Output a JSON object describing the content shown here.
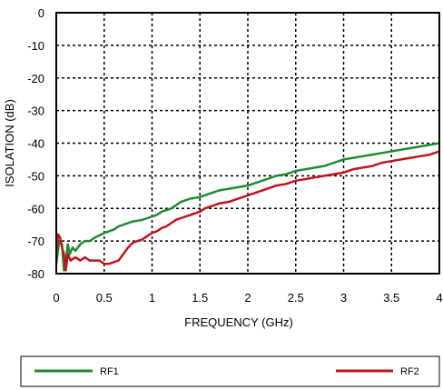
{
  "chart_data": {
    "type": "line",
    "xlabel": "FREQUENCY (GHz)",
    "ylabel": "ISOLATION (dB)",
    "xlim": [
      0,
      4
    ],
    "ylim": [
      -80,
      0
    ],
    "x_ticks": [
      0,
      0.5,
      1,
      1.5,
      2,
      2.5,
      3,
      3.5,
      4
    ],
    "x_tick_labels": [
      "0",
      "0.5",
      "1",
      "1.5",
      "2",
      "2.5",
      "3",
      "3.5",
      "4"
    ],
    "y_ticks": [
      0,
      -10,
      -20,
      -30,
      -40,
      -50,
      -60,
      -70,
      -80
    ],
    "y_tick_labels": [
      "0",
      "-10",
      "-20",
      "-30",
      "-40",
      "-50",
      "-60",
      "-70",
      "-80"
    ],
    "grid": true,
    "legend_position": "bottom",
    "series": [
      {
        "name": "RF1",
        "color": "#1e8a2e",
        "points": [
          [
            0,
            -77
          ],
          [
            0.03,
            -70
          ],
          [
            0.06,
            -71
          ],
          [
            0.08,
            -79
          ],
          [
            0.1,
            -76
          ],
          [
            0.12,
            -71
          ],
          [
            0.14,
            -74
          ],
          [
            0.17,
            -72
          ],
          [
            0.2,
            -73
          ],
          [
            0.25,
            -71
          ],
          [
            0.3,
            -70
          ],
          [
            0.35,
            -70
          ],
          [
            0.4,
            -69
          ],
          [
            0.5,
            -67.5
          ],
          [
            0.55,
            -67
          ],
          [
            0.6,
            -66.5
          ],
          [
            0.65,
            -65.5
          ],
          [
            0.7,
            -65
          ],
          [
            0.8,
            -64
          ],
          [
            0.9,
            -63.5
          ],
          [
            0.95,
            -63
          ],
          [
            1.0,
            -62.5
          ],
          [
            1.05,
            -62
          ],
          [
            1.1,
            -61
          ],
          [
            1.2,
            -60
          ],
          [
            1.25,
            -59
          ],
          [
            1.3,
            -58
          ],
          [
            1.4,
            -57
          ],
          [
            1.5,
            -56.5
          ],
          [
            1.6,
            -55.5
          ],
          [
            1.7,
            -54.5
          ],
          [
            1.8,
            -54
          ],
          [
            1.9,
            -53.5
          ],
          [
            2.0,
            -53
          ],
          [
            2.1,
            -52
          ],
          [
            2.2,
            -51
          ],
          [
            2.3,
            -50
          ],
          [
            2.4,
            -49.5
          ],
          [
            2.5,
            -48.5
          ],
          [
            2.6,
            -48
          ],
          [
            2.7,
            -47.5
          ],
          [
            2.8,
            -47
          ],
          [
            2.9,
            -46
          ],
          [
            3.0,
            -45
          ],
          [
            3.1,
            -44.5
          ],
          [
            3.2,
            -44
          ],
          [
            3.3,
            -43.5
          ],
          [
            3.4,
            -43
          ],
          [
            3.5,
            -42.5
          ],
          [
            3.6,
            -42
          ],
          [
            3.7,
            -41.5
          ],
          [
            3.8,
            -41
          ],
          [
            3.9,
            -40.5
          ],
          [
            4.0,
            -40
          ]
        ]
      },
      {
        "name": "RF2",
        "color": "#c0141c",
        "points": [
          [
            0,
            -73
          ],
          [
            0.02,
            -68
          ],
          [
            0.04,
            -69
          ],
          [
            0.06,
            -72
          ],
          [
            0.08,
            -74
          ],
          [
            0.1,
            -79
          ],
          [
            0.12,
            -74
          ],
          [
            0.15,
            -76
          ],
          [
            0.2,
            -75
          ],
          [
            0.25,
            -76
          ],
          [
            0.3,
            -75
          ],
          [
            0.35,
            -76
          ],
          [
            0.4,
            -76
          ],
          [
            0.45,
            -76
          ],
          [
            0.5,
            -77
          ],
          [
            0.55,
            -77
          ],
          [
            0.6,
            -76.5
          ],
          [
            0.65,
            -76
          ],
          [
            0.7,
            -74
          ],
          [
            0.75,
            -72
          ],
          [
            0.8,
            -70.5
          ],
          [
            0.85,
            -70
          ],
          [
            0.9,
            -69.5
          ],
          [
            0.95,
            -68.5
          ],
          [
            1.0,
            -67.5
          ],
          [
            1.05,
            -67
          ],
          [
            1.1,
            -66
          ],
          [
            1.15,
            -65.5
          ],
          [
            1.2,
            -64.5
          ],
          [
            1.25,
            -63.5
          ],
          [
            1.3,
            -63
          ],
          [
            1.4,
            -62
          ],
          [
            1.5,
            -61
          ],
          [
            1.55,
            -60
          ],
          [
            1.6,
            -59.5
          ],
          [
            1.7,
            -58.5
          ],
          [
            1.8,
            -58
          ],
          [
            1.9,
            -57
          ],
          [
            2.0,
            -56
          ],
          [
            2.1,
            -55
          ],
          [
            2.2,
            -54
          ],
          [
            2.3,
            -53
          ],
          [
            2.4,
            -52.5
          ],
          [
            2.5,
            -51.5
          ],
          [
            2.6,
            -51
          ],
          [
            2.7,
            -50.5
          ],
          [
            2.8,
            -50
          ],
          [
            2.9,
            -49.5
          ],
          [
            3.0,
            -49
          ],
          [
            3.1,
            -48
          ],
          [
            3.2,
            -47.5
          ],
          [
            3.3,
            -47
          ],
          [
            3.4,
            -46
          ],
          [
            3.5,
            -45.5
          ],
          [
            3.6,
            -45
          ],
          [
            3.7,
            -44.5
          ],
          [
            3.8,
            -44
          ],
          [
            3.9,
            -43.5
          ],
          [
            4.0,
            -42.5
          ]
        ]
      }
    ]
  }
}
